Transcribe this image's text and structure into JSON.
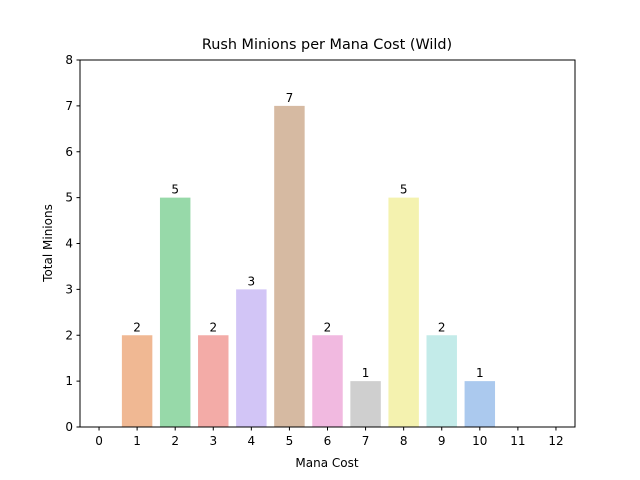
{
  "chart_data": {
    "type": "bar",
    "title": "Rush Minions per Mana Cost (Wild)",
    "xlabel": "Mana Cost",
    "ylabel": "Total Minions",
    "categories": [
      "0",
      "1",
      "2",
      "3",
      "4",
      "5",
      "6",
      "7",
      "8",
      "9",
      "10",
      "11",
      "12"
    ],
    "values": [
      0,
      2,
      5,
      2,
      3,
      7,
      2,
      1,
      5,
      2,
      1,
      0,
      0
    ],
    "data_labels": [
      "",
      "2",
      "5",
      "2",
      "3",
      "7",
      "2",
      "1",
      "5",
      "2",
      "1",
      "",
      ""
    ],
    "colors": [
      "#f0b893",
      "#f0b893",
      "#97d9a9",
      "#f3aba7",
      "#d2c5f6",
      "#d6baa2",
      "#f1b9e0",
      "#cfcfcf",
      "#f4f2af",
      "#c3ebe9",
      "#abc9ee",
      "#abc9ee",
      "#abc9ee"
    ],
    "ylim": [
      0,
      8
    ],
    "yticks": [
      "0",
      "1",
      "2",
      "3",
      "4",
      "5",
      "6",
      "7",
      "8"
    ],
    "grid": false,
    "legend": "none"
  }
}
